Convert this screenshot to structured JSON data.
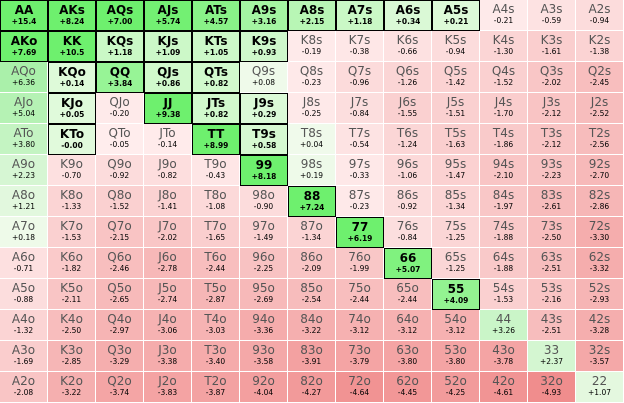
{
  "rows": [
    [
      [
        "AA",
        "+15.4",
        1
      ],
      [
        "AKs",
        "+8.24",
        1
      ],
      [
        "AQs",
        "+7.00",
        1
      ],
      [
        "AJs",
        "+5.74",
        1
      ],
      [
        "ATs",
        "+4.57",
        1
      ],
      [
        "A9s",
        "+3.16",
        1
      ],
      [
        "A8s",
        "+2.15",
        1
      ],
      [
        "A7s",
        "+1.18",
        1
      ],
      [
        "A6s",
        "+0.34",
        1
      ],
      [
        "A5s",
        "+0.21",
        1
      ],
      [
        "A4s",
        "-0.21",
        0
      ],
      [
        "A3s",
        "-0.59",
        0
      ],
      [
        "A2s",
        "-0.94",
        0
      ]
    ],
    [
      [
        "AKo",
        "+7.69",
        1
      ],
      [
        "KK",
        "+10.5",
        1
      ],
      [
        "KQs",
        "+1.18",
        1
      ],
      [
        "KJs",
        "+1.09",
        1
      ],
      [
        "KTs",
        "+1.05",
        1
      ],
      [
        "K9s",
        "+0.93",
        1
      ],
      [
        "K8s",
        "-0.19",
        0
      ],
      [
        "K7s",
        "-0.38",
        0
      ],
      [
        "K6s",
        "-0.66",
        0
      ],
      [
        "K5s",
        "-0.94",
        0
      ],
      [
        "K4s",
        "-1.30",
        0
      ],
      [
        "K3s",
        "-1.61",
        0
      ],
      [
        "K2s",
        "-1.38",
        0
      ]
    ],
    [
      [
        "AQo",
        "+6.36",
        0
      ],
      [
        "KQo",
        "+0.14",
        1
      ],
      [
        "QQ",
        "+3.84",
        1
      ],
      [
        "QJs",
        "+0.86",
        1
      ],
      [
        "QTs",
        "+0.82",
        1
      ],
      [
        "Q9s",
        "+0.08",
        0
      ],
      [
        "Q8s",
        "-0.23",
        0
      ],
      [
        "Q7s",
        "-0.96",
        0
      ],
      [
        "Q6s",
        "-1.26",
        0
      ],
      [
        "Q5s",
        "-1.42",
        0
      ],
      [
        "Q4s",
        "-1.52",
        0
      ],
      [
        "Q3s",
        "-2.02",
        0
      ],
      [
        "Q2s",
        "-2.45",
        0
      ]
    ],
    [
      [
        "AJo",
        "+5.04",
        0
      ],
      [
        "KJo",
        "+0.05",
        1
      ],
      [
        "QJo",
        "-0.20",
        0
      ],
      [
        "JJ",
        "+9.38",
        1
      ],
      [
        "JTs",
        "+0.82",
        1
      ],
      [
        "J9s",
        "+0.29",
        1
      ],
      [
        "J8s",
        "-0.25",
        0
      ],
      [
        "J7s",
        "-0.84",
        0
      ],
      [
        "J6s",
        "-1.55",
        0
      ],
      [
        "J5s",
        "-1.51",
        0
      ],
      [
        "J4s",
        "-1.70",
        0
      ],
      [
        "J3s",
        "-2.12",
        0
      ],
      [
        "J2s",
        "-2.52",
        0
      ]
    ],
    [
      [
        "ATo",
        "+3.80",
        0
      ],
      [
        "KTo",
        "-0.00",
        1
      ],
      [
        "QTo",
        "-0.05",
        0
      ],
      [
        "JTo",
        "-0.14",
        0
      ],
      [
        "TT",
        "+8.99",
        1
      ],
      [
        "T9s",
        "+0.58",
        1
      ],
      [
        "T8s",
        "+0.04",
        0
      ],
      [
        "T7s",
        "-0.54",
        0
      ],
      [
        "T6s",
        "-1.24",
        0
      ],
      [
        "T5s",
        "-1.63",
        0
      ],
      [
        "T4s",
        "-1.86",
        0
      ],
      [
        "T3s",
        "-2.12",
        0
      ],
      [
        "T2s",
        "-2.56",
        0
      ]
    ],
    [
      [
        "A9o",
        "+2.23",
        0
      ],
      [
        "K9o",
        "-0.70",
        0
      ],
      [
        "Q9o",
        "-0.92",
        0
      ],
      [
        "J9o",
        "-0.82",
        0
      ],
      [
        "T9o",
        "-0.43",
        0
      ],
      [
        "99",
        "+8.18",
        1
      ],
      [
        "98s",
        "+0.19",
        0
      ],
      [
        "97s",
        "-0.33",
        0
      ],
      [
        "96s",
        "-1.06",
        0
      ],
      [
        "95s",
        "-1.47",
        0
      ],
      [
        "94s",
        "-2.10",
        0
      ],
      [
        "93s",
        "-2.23",
        0
      ],
      [
        "92s",
        "-2.70",
        0
      ]
    ],
    [
      [
        "A8o",
        "+1.21",
        0
      ],
      [
        "K8o",
        "-1.33",
        0
      ],
      [
        "Q8o",
        "-1.52",
        0
      ],
      [
        "J8o",
        "-1.41",
        0
      ],
      [
        "T8o",
        "-1.08",
        0
      ],
      [
        "98o",
        "-0.90",
        0
      ],
      [
        "88",
        "+7.24",
        1
      ],
      [
        "87s",
        "-0.23",
        0
      ],
      [
        "86s",
        "-0.92",
        0
      ],
      [
        "85s",
        "-1.34",
        0
      ],
      [
        "84s",
        "-1.97",
        0
      ],
      [
        "83s",
        "-2.61",
        0
      ],
      [
        "82s",
        "-2.86",
        0
      ]
    ],
    [
      [
        "A7o",
        "+0.18",
        0
      ],
      [
        "K7o",
        "-1.53",
        0
      ],
      [
        "Q7o",
        "-2.15",
        0
      ],
      [
        "J7o",
        "-2.02",
        0
      ],
      [
        "T7o",
        "-1.65",
        0
      ],
      [
        "97o",
        "-1.49",
        0
      ],
      [
        "87o",
        "-1.34",
        0
      ],
      [
        "77",
        "+6.19",
        1
      ],
      [
        "76s",
        "-0.84",
        0
      ],
      [
        "75s",
        "-1.25",
        0
      ],
      [
        "74s",
        "-1.88",
        0
      ],
      [
        "73s",
        "-2.50",
        0
      ],
      [
        "72s",
        "-3.30",
        0
      ]
    ],
    [
      [
        "A6o",
        "-0.71",
        0
      ],
      [
        "K6o",
        "-1.82",
        0
      ],
      [
        "Q6o",
        "-2.46",
        0
      ],
      [
        "J6o",
        "-2.78",
        0
      ],
      [
        "T6o",
        "-2.44",
        0
      ],
      [
        "96o",
        "-2.25",
        0
      ],
      [
        "86o",
        "-2.09",
        0
      ],
      [
        "76o",
        "-1.99",
        0
      ],
      [
        "66",
        "+5.07",
        1
      ],
      [
        "65s",
        "-1.25",
        0
      ],
      [
        "64s",
        "-1.88",
        0
      ],
      [
        "63s",
        "-2.51",
        0
      ],
      [
        "62s",
        "-3.32",
        0
      ]
    ],
    [
      [
        "A5o",
        "-0.88",
        0
      ],
      [
        "K5o",
        "-2.11",
        0
      ],
      [
        "Q5o",
        "-2.65",
        0
      ],
      [
        "J5o",
        "-2.74",
        0
      ],
      [
        "T5o",
        "-2.87",
        0
      ],
      [
        "95o",
        "-2.69",
        0
      ],
      [
        "85o",
        "-2.54",
        0
      ],
      [
        "75o",
        "-2.44",
        0
      ],
      [
        "65o",
        "-2.44",
        0
      ],
      [
        "55",
        "+4.09",
        1
      ],
      [
        "54s",
        "-1.53",
        0
      ],
      [
        "53s",
        "-2.16",
        0
      ],
      [
        "52s",
        "-2.93",
        0
      ]
    ],
    [
      [
        "A4o",
        "-1.32",
        0
      ],
      [
        "K4o",
        "-2.50",
        0
      ],
      [
        "Q4o",
        "-2.97",
        0
      ],
      [
        "J4o",
        "-3.06",
        0
      ],
      [
        "T4o",
        "-3.03",
        0
      ],
      [
        "94o",
        "-3.36",
        0
      ],
      [
        "84o",
        "-3.22",
        0
      ],
      [
        "74o",
        "-3.12",
        0
      ],
      [
        "64o",
        "-3.12",
        0
      ],
      [
        "54o",
        "-3.12",
        0
      ],
      [
        "44",
        "+3.26",
        0
      ],
      [
        "43s",
        "-2.51",
        0
      ],
      [
        "42s",
        "-3.28",
        0
      ]
    ],
    [
      [
        "A3o",
        "-1.69",
        0
      ],
      [
        "K3o",
        "-2.85",
        0
      ],
      [
        "Q3o",
        "-3.29",
        0
      ],
      [
        "J3o",
        "-3.38",
        0
      ],
      [
        "T3o",
        "-3.40",
        0
      ],
      [
        "93o",
        "-3.58",
        0
      ],
      [
        "83o",
        "-3.91",
        0
      ],
      [
        "73o",
        "-3.79",
        0
      ],
      [
        "63o",
        "-3.80",
        0
      ],
      [
        "53o",
        "-3.80",
        0
      ],
      [
        "43o",
        "-3.78",
        0
      ],
      [
        "33",
        "+2.37",
        0
      ],
      [
        "32s",
        "-3.57",
        0
      ]
    ],
    [
      [
        "A2o",
        "-2.08",
        0
      ],
      [
        "K2o",
        "-3.22",
        0
      ],
      [
        "Q2o",
        "-3.74",
        0
      ],
      [
        "J2o",
        "-3.83",
        0
      ],
      [
        "T2o",
        "-3.87",
        0
      ],
      [
        "92o",
        "-4.04",
        0
      ],
      [
        "82o",
        "-4.27",
        0
      ],
      [
        "72o",
        "-4.64",
        0
      ],
      [
        "62o",
        "-4.45",
        0
      ],
      [
        "52o",
        "-4.25",
        0
      ],
      [
        "42o",
        "-4.61",
        0
      ],
      [
        "32o",
        "-4.93",
        0
      ],
      [
        "22",
        "+1.07",
        0
      ]
    ]
  ]
}
